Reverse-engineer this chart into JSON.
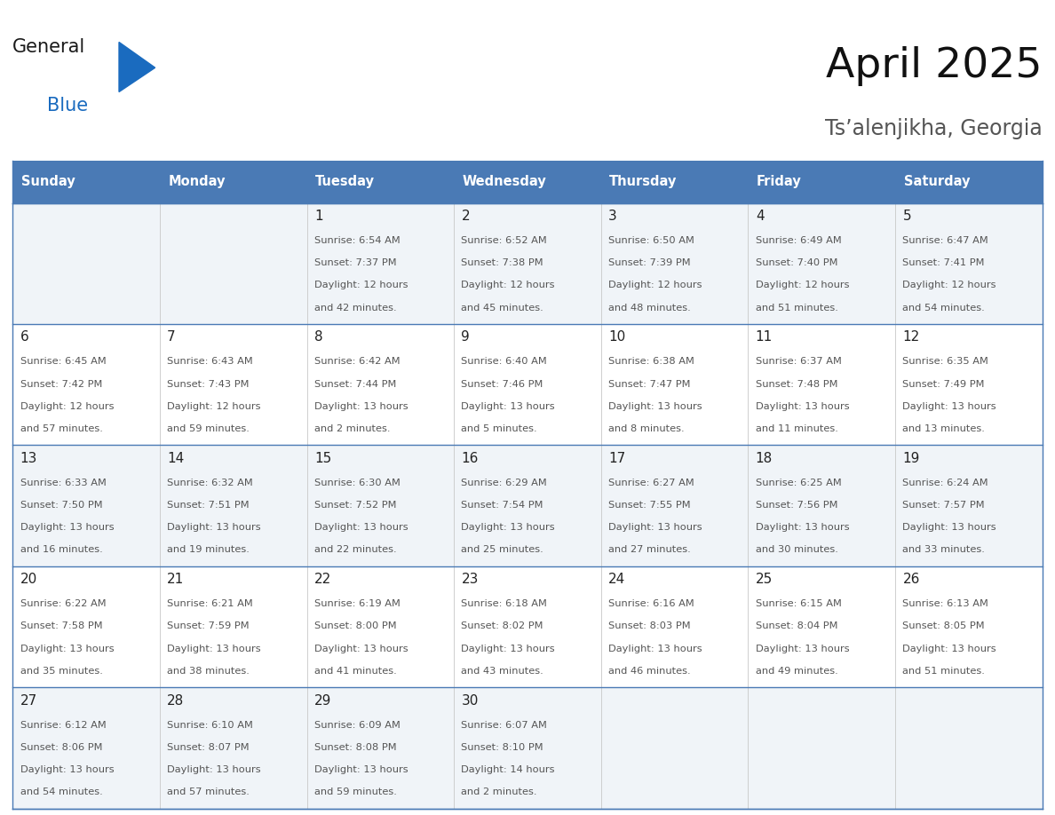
{
  "title": "April 2025",
  "subtitle": "Ts’alenjikha, Georgia",
  "days_of_week": [
    "Sunday",
    "Monday",
    "Tuesday",
    "Wednesday",
    "Thursday",
    "Friday",
    "Saturday"
  ],
  "header_bg": "#4a7ab5",
  "header_text": "#ffffff",
  "row_bg_odd": "#f0f4f8",
  "row_bg_even": "#ffffff",
  "cell_border_color": "#4a7ab5",
  "day_num_color": "#222222",
  "day_text_color": "#555555",
  "title_color": "#111111",
  "subtitle_color": "#555555",
  "logo_general_color": "#1a1a1a",
  "logo_blue_color": "#1a6bbf",
  "calendar_data": [
    [
      null,
      null,
      {
        "day": "1",
        "sunrise": "6:54 AM",
        "sunset": "7:37 PM",
        "daylight": "12 hours\nand 42 minutes."
      },
      {
        "day": "2",
        "sunrise": "6:52 AM",
        "sunset": "7:38 PM",
        "daylight": "12 hours\nand 45 minutes."
      },
      {
        "day": "3",
        "sunrise": "6:50 AM",
        "sunset": "7:39 PM",
        "daylight": "12 hours\nand 48 minutes."
      },
      {
        "day": "4",
        "sunrise": "6:49 AM",
        "sunset": "7:40 PM",
        "daylight": "12 hours\nand 51 minutes."
      },
      {
        "day": "5",
        "sunrise": "6:47 AM",
        "sunset": "7:41 PM",
        "daylight": "12 hours\nand 54 minutes."
      }
    ],
    [
      {
        "day": "6",
        "sunrise": "6:45 AM",
        "sunset": "7:42 PM",
        "daylight": "12 hours\nand 57 minutes."
      },
      {
        "day": "7",
        "sunrise": "6:43 AM",
        "sunset": "7:43 PM",
        "daylight": "12 hours\nand 59 minutes."
      },
      {
        "day": "8",
        "sunrise": "6:42 AM",
        "sunset": "7:44 PM",
        "daylight": "13 hours\nand 2 minutes."
      },
      {
        "day": "9",
        "sunrise": "6:40 AM",
        "sunset": "7:46 PM",
        "daylight": "13 hours\nand 5 minutes."
      },
      {
        "day": "10",
        "sunrise": "6:38 AM",
        "sunset": "7:47 PM",
        "daylight": "13 hours\nand 8 minutes."
      },
      {
        "day": "11",
        "sunrise": "6:37 AM",
        "sunset": "7:48 PM",
        "daylight": "13 hours\nand 11 minutes."
      },
      {
        "day": "12",
        "sunrise": "6:35 AM",
        "sunset": "7:49 PM",
        "daylight": "13 hours\nand 13 minutes."
      }
    ],
    [
      {
        "day": "13",
        "sunrise": "6:33 AM",
        "sunset": "7:50 PM",
        "daylight": "13 hours\nand 16 minutes."
      },
      {
        "day": "14",
        "sunrise": "6:32 AM",
        "sunset": "7:51 PM",
        "daylight": "13 hours\nand 19 minutes."
      },
      {
        "day": "15",
        "sunrise": "6:30 AM",
        "sunset": "7:52 PM",
        "daylight": "13 hours\nand 22 minutes."
      },
      {
        "day": "16",
        "sunrise": "6:29 AM",
        "sunset": "7:54 PM",
        "daylight": "13 hours\nand 25 minutes."
      },
      {
        "day": "17",
        "sunrise": "6:27 AM",
        "sunset": "7:55 PM",
        "daylight": "13 hours\nand 27 minutes."
      },
      {
        "day": "18",
        "sunrise": "6:25 AM",
        "sunset": "7:56 PM",
        "daylight": "13 hours\nand 30 minutes."
      },
      {
        "day": "19",
        "sunrise": "6:24 AM",
        "sunset": "7:57 PM",
        "daylight": "13 hours\nand 33 minutes."
      }
    ],
    [
      {
        "day": "20",
        "sunrise": "6:22 AM",
        "sunset": "7:58 PM",
        "daylight": "13 hours\nand 35 minutes."
      },
      {
        "day": "21",
        "sunrise": "6:21 AM",
        "sunset": "7:59 PM",
        "daylight": "13 hours\nand 38 minutes."
      },
      {
        "day": "22",
        "sunrise": "6:19 AM",
        "sunset": "8:00 PM",
        "daylight": "13 hours\nand 41 minutes."
      },
      {
        "day": "23",
        "sunrise": "6:18 AM",
        "sunset": "8:02 PM",
        "daylight": "13 hours\nand 43 minutes."
      },
      {
        "day": "24",
        "sunrise": "6:16 AM",
        "sunset": "8:03 PM",
        "daylight": "13 hours\nand 46 minutes."
      },
      {
        "day": "25",
        "sunrise": "6:15 AM",
        "sunset": "8:04 PM",
        "daylight": "13 hours\nand 49 minutes."
      },
      {
        "day": "26",
        "sunrise": "6:13 AM",
        "sunset": "8:05 PM",
        "daylight": "13 hours\nand 51 minutes."
      }
    ],
    [
      {
        "day": "27",
        "sunrise": "6:12 AM",
        "sunset": "8:06 PM",
        "daylight": "13 hours\nand 54 minutes."
      },
      {
        "day": "28",
        "sunrise": "6:10 AM",
        "sunset": "8:07 PM",
        "daylight": "13 hours\nand 57 minutes."
      },
      {
        "day": "29",
        "sunrise": "6:09 AM",
        "sunset": "8:08 PM",
        "daylight": "13 hours\nand 59 minutes."
      },
      {
        "day": "30",
        "sunrise": "6:07 AM",
        "sunset": "8:10 PM",
        "daylight": "14 hours\nand 2 minutes."
      },
      null,
      null,
      null
    ]
  ]
}
